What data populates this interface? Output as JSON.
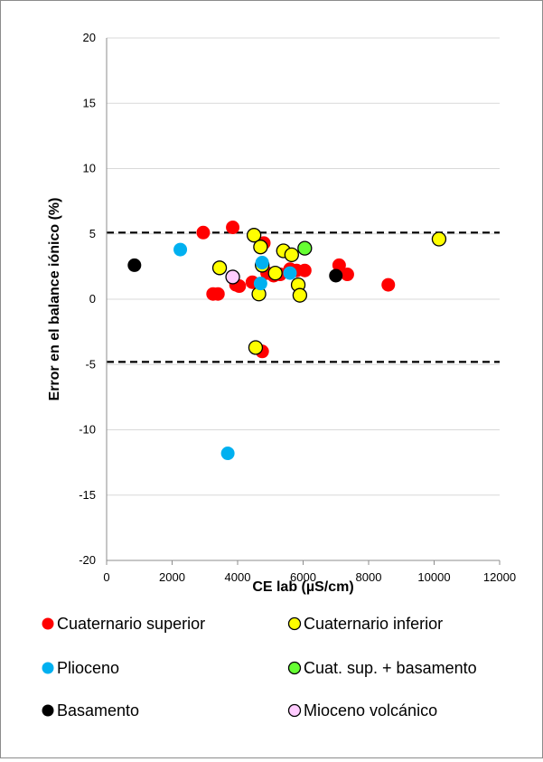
{
  "chart_data": {
    "type": "scatter",
    "title": "",
    "xlabel": "CE lab (µS/cm)",
    "ylabel": "Error en el balance iónico (%)",
    "xlim": [
      0,
      12000
    ],
    "ylim": [
      -20,
      20
    ],
    "x_ticks": [
      "0",
      "2000",
      "4000",
      "6000",
      "8000",
      "10000",
      "12000"
    ],
    "y_ticks": [
      "20",
      "15",
      "10",
      "5",
      "0",
      "-5",
      "-10",
      "-15",
      "-20"
    ],
    "grid": "horizontal",
    "legend_position": "bottom",
    "reference_lines": [
      5.1,
      -4.8
    ],
    "series": [
      {
        "name": "Cuaternario superior",
        "color": "#ff0000",
        "outline": "none",
        "points": [
          [
            2950,
            5.1
          ],
          [
            3850,
            5.5
          ],
          [
            3250,
            0.4
          ],
          [
            3400,
            0.4
          ],
          [
            3950,
            1.1
          ],
          [
            4050,
            1.0
          ],
          [
            4450,
            1.3
          ],
          [
            4750,
            -4.0
          ],
          [
            4800,
            4.3
          ],
          [
            4900,
            2.0
          ],
          [
            5100,
            1.8
          ],
          [
            5300,
            1.9
          ],
          [
            5600,
            2.3
          ],
          [
            5800,
            2.2
          ],
          [
            6050,
            2.2
          ],
          [
            7100,
            2.6
          ],
          [
            7350,
            1.9
          ],
          [
            8600,
            1.1
          ]
        ]
      },
      {
        "name": "Cuaternario inferior",
        "color": "#ffff00",
        "outline": "#000000",
        "points": [
          [
            3450,
            2.4
          ],
          [
            4500,
            4.9
          ],
          [
            4700,
            4.0
          ],
          [
            4750,
            2.6
          ],
          [
            4550,
            -3.7
          ],
          [
            4650,
            0.4
          ],
          [
            5150,
            2.0
          ],
          [
            5400,
            3.7
          ],
          [
            5650,
            3.4
          ],
          [
            5850,
            1.1
          ],
          [
            5900,
            0.3
          ],
          [
            10150,
            4.6
          ]
        ]
      },
      {
        "name": "Plioceno",
        "color": "#00b0f0",
        "outline": "none",
        "points": [
          [
            2250,
            3.8
          ],
          [
            3700,
            -11.8
          ],
          [
            4700,
            1.2
          ],
          [
            4750,
            2.8
          ],
          [
            5600,
            2.0
          ]
        ]
      },
      {
        "name": "Cuat. sup. + basamento",
        "color": "#66ff33",
        "outline": "#000000",
        "points": [
          [
            6050,
            3.9
          ]
        ]
      },
      {
        "name": "Basamento",
        "color": "#000000",
        "outline": "none",
        "points": [
          [
            850,
            2.6
          ],
          [
            7000,
            1.8
          ]
        ]
      },
      {
        "name": "Mioceno volcánico",
        "color": "#ffccff",
        "outline": "#000000",
        "points": [
          [
            3850,
            1.7
          ]
        ]
      }
    ]
  }
}
